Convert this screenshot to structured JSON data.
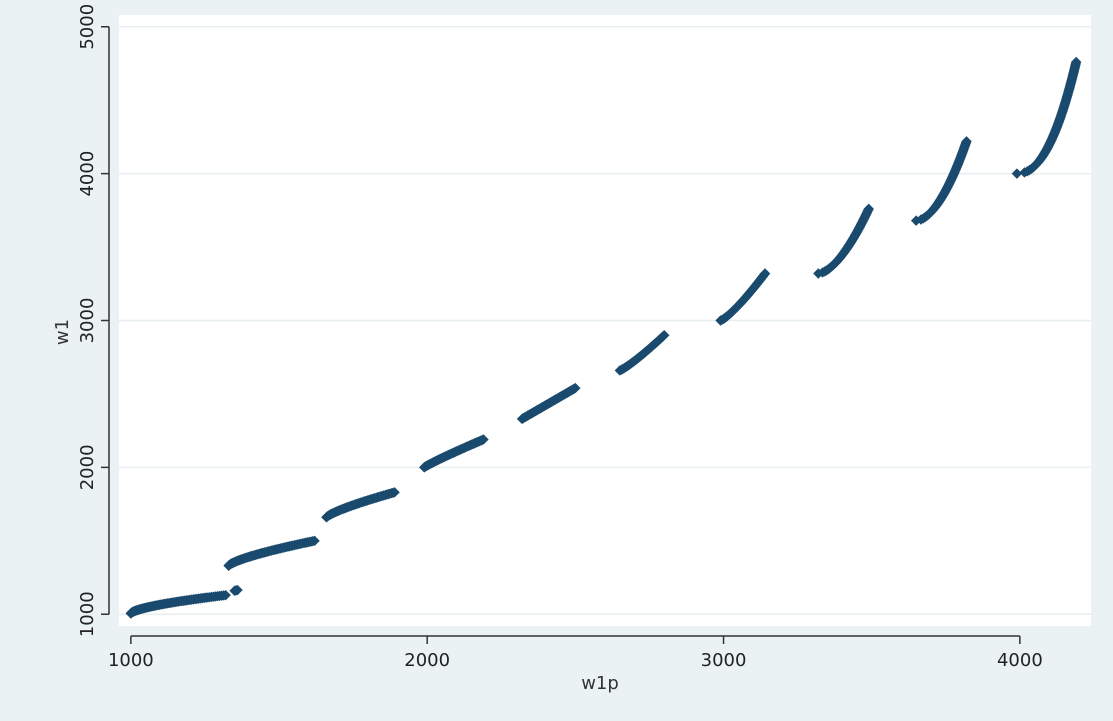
{
  "chart_data": {
    "type": "scatter",
    "xlabel": "w1p",
    "ylabel": "w1",
    "xlim": [
      960,
      4240
    ],
    "ylim": [
      920,
      5080
    ],
    "x_ticks": [
      1000,
      2000,
      3000,
      4000
    ],
    "y_ticks": [
      1000,
      2000,
      3000,
      4000,
      5000
    ],
    "x_tick_labels": [
      "1000",
      "2000",
      "3000",
      "4000"
    ],
    "y_tick_labels": [
      "1000",
      "2000",
      "3000",
      "4000",
      "5000"
    ],
    "grid": "horizontal",
    "marker": "diamond",
    "colors": {
      "marker": "#1a4a6e",
      "background": "#eaf2f3",
      "plot_area": "#ffffff",
      "grid": "#e6eef0",
      "axis": "#333333"
    },
    "segments": [
      {
        "x_start": 1000,
        "y_start": 1005,
        "x_end": 1320,
        "y_end": 1130,
        "curve": 1.6
      },
      {
        "x_start": 1350,
        "y_start": 1160,
        "x_end": 1360,
        "y_end": 1165,
        "curve": 1.0
      },
      {
        "x_start": 1330,
        "y_start": 1330,
        "x_end": 1620,
        "y_end": 1500,
        "curve": 1.4
      },
      {
        "x_start": 1660,
        "y_start": 1660,
        "x_end": 1890,
        "y_end": 1830,
        "curve": 1.3
      },
      {
        "x_start": 1990,
        "y_start": 2000,
        "x_end": 2190,
        "y_end": 2190,
        "curve": 1.1
      },
      {
        "x_start": 2320,
        "y_start": 2330,
        "x_end": 2500,
        "y_end": 2540,
        "curve": 1.0
      },
      {
        "x_start": 2650,
        "y_start": 2660,
        "x_end": 2800,
        "y_end": 2900,
        "curve": 0.85
      },
      {
        "x_start": 2990,
        "y_start": 3000,
        "x_end": 3140,
        "y_end": 3320,
        "curve": 0.8
      },
      {
        "x_start": 3320,
        "y_start": 3320,
        "x_end": 3490,
        "y_end": 3760,
        "curve": 0.6
      },
      {
        "x_start": 3650,
        "y_start": 3680,
        "x_end": 3820,
        "y_end": 4220,
        "curve": 0.55
      },
      {
        "x_start": 3990,
        "y_start": 4000,
        "x_end": 4190,
        "y_end": 4760,
        "curve": 0.45
      }
    ]
  }
}
